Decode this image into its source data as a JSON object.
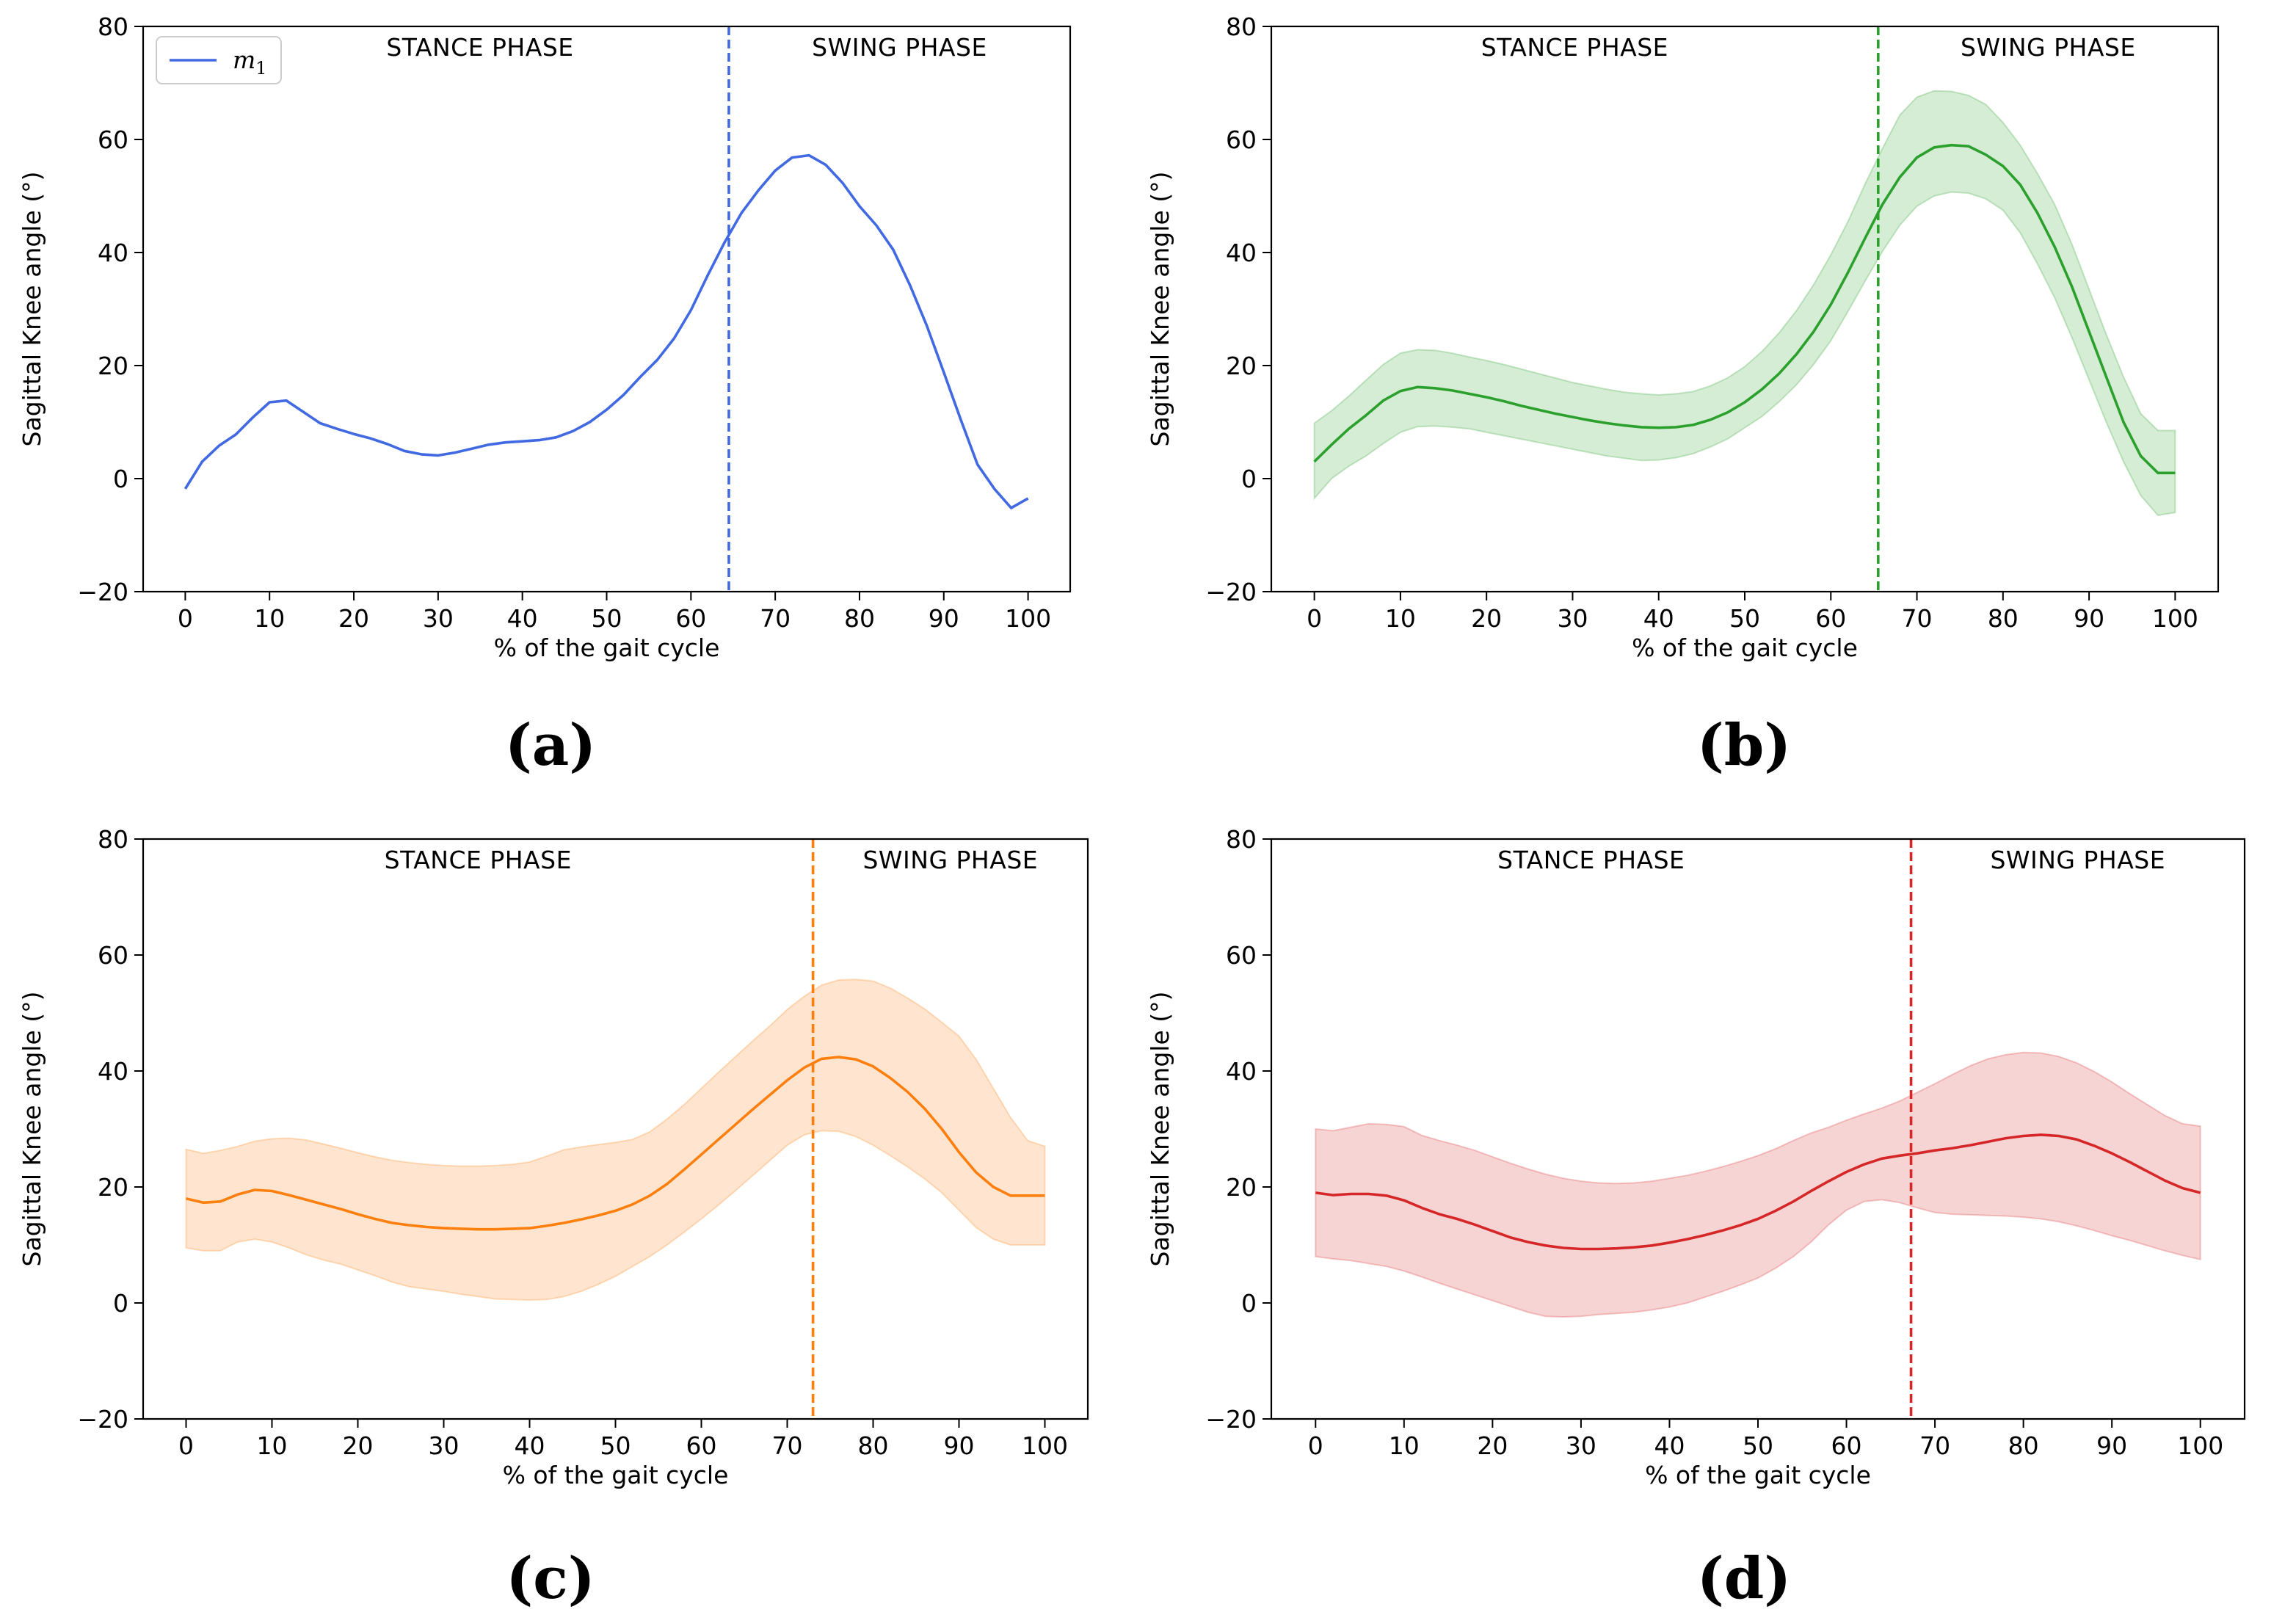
{
  "chart_data": [
    {
      "type": "line",
      "panel": "a",
      "caption": "(a)",
      "xlabel": "% of the gait cycle",
      "ylabel": "Sagittal Knee angle (°)",
      "xlim": [
        -5,
        105
      ],
      "ylim": [
        -20,
        80
      ],
      "xticks": [
        "0",
        "10",
        "20",
        "30",
        "40",
        "50",
        "60",
        "70",
        "80",
        "90",
        "100"
      ],
      "yticks": [
        "−20",
        "0",
        "20",
        "40",
        "60",
        "80"
      ],
      "stance_label": "STANCE PHASE",
      "swing_label": "SWING PHASE",
      "phase_split": 64.5,
      "legend": {
        "label_main": "m",
        "label_sub": "1",
        "position": "upper-left"
      },
      "color": "#4169e1",
      "band_color": null,
      "series": {
        "name": "m1",
        "x": [
          0,
          2,
          4,
          6,
          8,
          10,
          12,
          14,
          16,
          18,
          20,
          22,
          24,
          26,
          28,
          30,
          32,
          34,
          36,
          38,
          40,
          42,
          44,
          46,
          48,
          50,
          52,
          54,
          56,
          58,
          60,
          62,
          64,
          66,
          68,
          70,
          72,
          74,
          76,
          78,
          80,
          82,
          84,
          86,
          88,
          90,
          92,
          94,
          96,
          98,
          100
        ],
        "y": [
          -1.8,
          3,
          5.8,
          7.8,
          10.8,
          13.5,
          13.8,
          11.8,
          9.8,
          8.8,
          7.9,
          7.1,
          6.1,
          4.9,
          4.3,
          4.1,
          4.6,
          5.3,
          6,
          6.4,
          6.6,
          6.8,
          7.3,
          8.4,
          10,
          12.2,
          14.8,
          18,
          21,
          24.8,
          29.8,
          36,
          41.8,
          47,
          51,
          54.5,
          56.8,
          57.2,
          55.5,
          52.3,
          48.2,
          44.8,
          40.5,
          34.2,
          27,
          18.8,
          10.5,
          2.5,
          -1.8,
          -5.2,
          -3.5
        ],
        "lower": null,
        "upper": null
      }
    },
    {
      "type": "line",
      "panel": "b",
      "caption": "(b)",
      "xlabel": "% of the gait cycle",
      "ylabel": "Sagittal Knee angle (°)",
      "xlim": [
        -5,
        105
      ],
      "ylim": [
        -20,
        80
      ],
      "xticks": [
        "0",
        "10",
        "20",
        "30",
        "40",
        "50",
        "60",
        "70",
        "80",
        "90",
        "100"
      ],
      "yticks": [
        "−20",
        "0",
        "20",
        "40",
        "60",
        "80"
      ],
      "stance_label": "STANCE PHASE",
      "swing_label": "SWING PHASE",
      "phase_split": 65.5,
      "legend": null,
      "color": "#2ca02c",
      "band_color": "#2ca02c",
      "series": {
        "name": "mean",
        "x": [
          0,
          2,
          4,
          6,
          8,
          10,
          12,
          14,
          16,
          18,
          20,
          22,
          24,
          26,
          28,
          30,
          32,
          34,
          36,
          38,
          40,
          42,
          44,
          46,
          48,
          50,
          52,
          54,
          56,
          58,
          60,
          62,
          64,
          66,
          68,
          70,
          72,
          74,
          76,
          78,
          80,
          82,
          84,
          86,
          88,
          90,
          92,
          94,
          96,
          98,
          100
        ],
        "y": [
          3,
          6,
          8.8,
          11.2,
          13.8,
          15.5,
          16.2,
          16,
          15.6,
          15,
          14.4,
          13.7,
          12.9,
          12.2,
          11.5,
          10.9,
          10.3,
          9.8,
          9.4,
          9.1,
          9,
          9.1,
          9.5,
          10.4,
          11.7,
          13.5,
          15.8,
          18.6,
          22,
          26,
          30.8,
          36.5,
          42.6,
          48.5,
          53.3,
          56.8,
          58.6,
          59,
          58.8,
          57.3,
          55.3,
          52,
          47,
          41,
          34,
          26,
          18,
          10,
          4,
          1,
          1
        ],
        "lower": [
          -3.5,
          0,
          2.2,
          4,
          6.2,
          8.2,
          9.2,
          9.3,
          9.1,
          8.8,
          8.2,
          7.6,
          7,
          6.4,
          5.8,
          5.2,
          4.6,
          4,
          3.6,
          3.2,
          3.3,
          3.7,
          4.4,
          5.6,
          7,
          9,
          11,
          13.6,
          16.6,
          20.2,
          24.4,
          29.6,
          35,
          40.2,
          44.8,
          48.2,
          50,
          50.7,
          50.5,
          49.5,
          47.5,
          43.5,
          38,
          32,
          25,
          17.5,
          10,
          3,
          -3,
          -6.5,
          -6
        ],
        "upper": [
          9.8,
          12,
          14.6,
          17.4,
          20.2,
          22.2,
          22.8,
          22.7,
          22.2,
          21.5,
          20.9,
          20.2,
          19.4,
          18.6,
          17.8,
          17,
          16.4,
          15.8,
          15.3,
          15,
          14.8,
          15,
          15.4,
          16.4,
          17.8,
          19.8,
          22.5,
          25.8,
          29.7,
          34.3,
          39.6,
          45.5,
          52.2,
          58.4,
          64.3,
          67.5,
          68.6,
          68.5,
          67.8,
          66.2,
          63,
          59,
          54,
          48.5,
          41.5,
          33.5,
          25.5,
          18,
          11.5,
          8.5,
          8.5
        ]
      }
    },
    {
      "type": "line",
      "panel": "c",
      "caption": "(c)",
      "xlabel": "% of the gait cycle",
      "ylabel": "Sagittal Knee angle (°)",
      "xlim": [
        -5,
        105
      ],
      "ylim": [
        -20,
        80
      ],
      "xticks": [
        "0",
        "10",
        "20",
        "30",
        "40",
        "50",
        "60",
        "70",
        "80",
        "90",
        "100"
      ],
      "yticks": [
        "−20",
        "0",
        "20",
        "40",
        "60",
        "80"
      ],
      "stance_label": "STANCE PHASE",
      "swing_label": "SWING PHASE",
      "phase_split": 73,
      "legend": null,
      "color": "#ff7f0e",
      "band_color": "#ff7f0e",
      "series": {
        "name": "mean",
        "x": [
          0,
          2,
          4,
          6,
          8,
          10,
          12,
          14,
          16,
          18,
          20,
          22,
          24,
          26,
          28,
          30,
          32,
          34,
          36,
          38,
          40,
          42,
          44,
          46,
          48,
          50,
          52,
          54,
          56,
          58,
          60,
          62,
          64,
          66,
          68,
          70,
          72,
          74,
          76,
          78,
          80,
          82,
          84,
          86,
          88,
          90,
          92,
          94,
          96,
          98,
          100
        ],
        "y": [
          18,
          17.3,
          17.5,
          18.7,
          19.5,
          19.3,
          18.6,
          17.8,
          17,
          16.2,
          15.3,
          14.5,
          13.8,
          13.4,
          13.1,
          12.9,
          12.8,
          12.7,
          12.7,
          12.8,
          12.9,
          13.3,
          13.8,
          14.4,
          15.1,
          15.9,
          17,
          18.5,
          20.5,
          23,
          25.6,
          28.2,
          30.8,
          33.4,
          35.9,
          38.4,
          40.6,
          42.1,
          42.4,
          42,
          40.8,
          38.8,
          36.4,
          33.5,
          30,
          26,
          22.5,
          20,
          18.5,
          18.5,
          18.5
        ],
        "lower": [
          9.5,
          9,
          9,
          10.5,
          11,
          10.5,
          9.5,
          8.3,
          7.4,
          6.7,
          5.7,
          4.7,
          3.6,
          2.8,
          2.4,
          2,
          1.5,
          1.1,
          0.7,
          0.6,
          0.5,
          0.6,
          1.1,
          2,
          3.2,
          4.6,
          6.3,
          8,
          10,
          12.2,
          14.5,
          16.9,
          19.4,
          22,
          24.6,
          27.2,
          29,
          29.7,
          29.6,
          28.7,
          27.2,
          25.4,
          23.5,
          21.4,
          19,
          16,
          13,
          11,
          10,
          10,
          10
        ],
        "upper": [
          26.5,
          25.8,
          26.3,
          27,
          27.9,
          28.3,
          28.4,
          28.1,
          27.4,
          26.7,
          25.9,
          25.2,
          24.6,
          24.2,
          23.9,
          23.7,
          23.6,
          23.6,
          23.7,
          23.9,
          24.3,
          25.3,
          26.4,
          26.9,
          27.3,
          27.7,
          28.2,
          29.5,
          31.7,
          34.2,
          37,
          39.8,
          42.5,
          45.2,
          47.8,
          50.6,
          52.9,
          54.8,
          55.7,
          55.8,
          55.5,
          54.3,
          52.6,
          50.7,
          48.4,
          46,
          42,
          37,
          32,
          28,
          27
        ]
      }
    },
    {
      "type": "line",
      "panel": "d",
      "caption": "(d)",
      "xlabel": "% of the gait cycle",
      "ylabel": "Sagittal Knee angle (°)",
      "xlim": [
        -5,
        105
      ],
      "ylim": [
        -20,
        80
      ],
      "xticks": [
        "0",
        "10",
        "20",
        "30",
        "40",
        "50",
        "60",
        "70",
        "80",
        "90",
        "100"
      ],
      "yticks": [
        "−20",
        "0",
        "20",
        "40",
        "60",
        "80"
      ],
      "stance_label": "STANCE PHASE",
      "swing_label": "SWING PHASE",
      "phase_split": 67.3,
      "legend": null,
      "color": "#d62728",
      "band_color": "#d62728",
      "series": {
        "name": "mean",
        "x": [
          0,
          2,
          4,
          6,
          8,
          10,
          12,
          14,
          16,
          18,
          20,
          22,
          24,
          26,
          28,
          30,
          32,
          34,
          36,
          38,
          40,
          42,
          44,
          46,
          48,
          50,
          52,
          54,
          56,
          58,
          60,
          62,
          64,
          66,
          68,
          70,
          72,
          74,
          76,
          78,
          80,
          82,
          84,
          86,
          88,
          90,
          92,
          94,
          96,
          98,
          100
        ],
        "y": [
          19,
          18.6,
          18.8,
          18.8,
          18.5,
          17.7,
          16.4,
          15.3,
          14.5,
          13.5,
          12.4,
          11.3,
          10.5,
          9.9,
          9.5,
          9.3,
          9.3,
          9.4,
          9.6,
          9.9,
          10.4,
          11,
          11.7,
          12.5,
          13.4,
          14.5,
          15.9,
          17.5,
          19.3,
          21,
          22.6,
          23.9,
          24.9,
          25.4,
          25.8,
          26.3,
          26.7,
          27.2,
          27.8,
          28.4,
          28.8,
          29,
          28.8,
          28.2,
          27.1,
          25.8,
          24.3,
          22.7,
          21.1,
          19.8,
          19
        ],
        "lower": [
          8,
          7.6,
          7.3,
          6.8,
          6.3,
          5.5,
          4.5,
          3.4,
          2.4,
          1.4,
          0.4,
          -0.6,
          -1.6,
          -2.3,
          -2.4,
          -2.3,
          -2,
          -1.8,
          -1.6,
          -1.2,
          -0.7,
          0,
          1,
          2,
          3.1,
          4.3,
          6,
          8,
          10.5,
          13.5,
          16,
          17.5,
          17.8,
          17.3,
          16.4,
          15.6,
          15.3,
          15.2,
          15.1,
          15,
          14.8,
          14.5,
          14,
          13.3,
          12.5,
          11.6,
          10.8,
          9.9,
          9,
          8.2,
          7.5
        ],
        "upper": [
          30,
          29.7,
          30.3,
          30.9,
          30.8,
          30.4,
          28.9,
          28,
          27.2,
          26.3,
          25.2,
          24.1,
          23.1,
          22.2,
          21.5,
          21,
          20.7,
          20.6,
          20.7,
          21,
          21.5,
          22,
          22.7,
          23.5,
          24.4,
          25.4,
          26.6,
          28,
          29.3,
          30.3,
          31.5,
          32.6,
          33.6,
          34.8,
          36.3,
          37.8,
          39.4,
          40.9,
          42.1,
          42.8,
          43.2,
          43.1,
          42.5,
          41.4,
          39.9,
          38.1,
          36.1,
          34.2,
          32.3,
          30.9,
          30.5
        ]
      }
    }
  ]
}
